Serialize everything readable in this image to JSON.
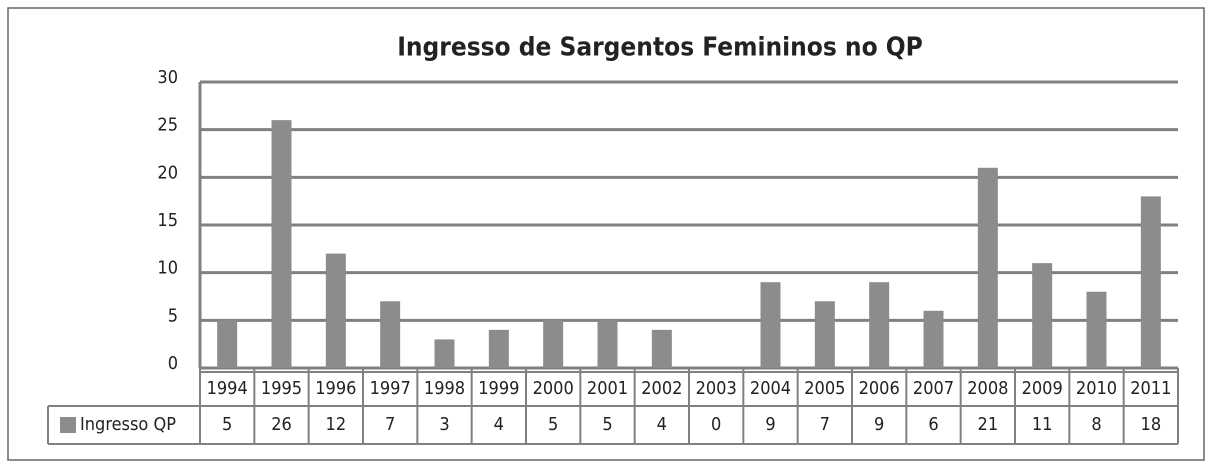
{
  "chart_data": {
    "type": "bar",
    "title": "Ingresso de Sargentos Femininos no QP",
    "categories": [
      "1994",
      "1995",
      "1996",
      "1997",
      "1998",
      "1999",
      "2000",
      "2001",
      "2002",
      "2003",
      "2004",
      "2005",
      "2006",
      "2007",
      "2008",
      "2009",
      "2010",
      "2011"
    ],
    "series": [
      {
        "name": "Ingresso QP",
        "color": "#8c8c8c",
        "values": [
          5,
          26,
          12,
          7,
          3,
          4,
          5,
          5,
          4,
          0,
          9,
          7,
          9,
          6,
          21,
          11,
          8,
          18
        ]
      }
    ],
    "ylim": [
      0,
      30
    ],
    "yticks": [
      0,
      5,
      10,
      15,
      20,
      25,
      30
    ],
    "grid": true,
    "data_table": true
  }
}
